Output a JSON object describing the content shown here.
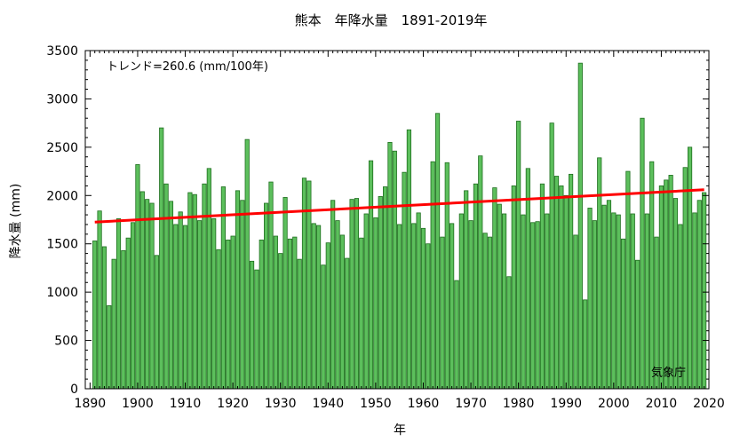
{
  "chart_data": {
    "type": "bar",
    "title": "熊本　年降水量　1891-2019年",
    "xlabel": "年",
    "ylabel": "降水量 (mm)",
    "xlim": [
      1889,
      2020
    ],
    "ylim": [
      0,
      3500
    ],
    "x_ticks": [
      1890,
      1900,
      1910,
      1920,
      1930,
      1940,
      1950,
      1960,
      1970,
      1980,
      1990,
      2000,
      2010,
      2020
    ],
    "y_ticks": [
      0,
      500,
      1000,
      1500,
      2000,
      2500,
      3000,
      3500
    ],
    "grid": false,
    "x": [
      1891,
      1892,
      1893,
      1894,
      1895,
      1896,
      1897,
      1898,
      1899,
      1900,
      1901,
      1902,
      1903,
      1904,
      1905,
      1906,
      1907,
      1908,
      1909,
      1910,
      1911,
      1912,
      1913,
      1914,
      1915,
      1916,
      1917,
      1918,
      1919,
      1920,
      1921,
      1922,
      1923,
      1924,
      1925,
      1926,
      1927,
      1928,
      1929,
      1930,
      1931,
      1932,
      1933,
      1934,
      1935,
      1936,
      1937,
      1938,
      1939,
      1940,
      1941,
      1942,
      1943,
      1944,
      1945,
      1946,
      1947,
      1948,
      1949,
      1950,
      1951,
      1952,
      1953,
      1954,
      1955,
      1956,
      1957,
      1958,
      1959,
      1960,
      1961,
      1962,
      1963,
      1964,
      1965,
      1966,
      1967,
      1968,
      1969,
      1970,
      1971,
      1972,
      1973,
      1974,
      1975,
      1976,
      1977,
      1978,
      1979,
      1980,
      1981,
      1982,
      1983,
      1984,
      1985,
      1986,
      1987,
      1988,
      1989,
      1990,
      1991,
      1992,
      1993,
      1994,
      1995,
      1996,
      1997,
      1998,
      1999,
      2000,
      2001,
      2002,
      2003,
      2004,
      2005,
      2006,
      2007,
      2008,
      2009,
      2010,
      2011,
      2012,
      2013,
      2014,
      2015,
      2016,
      2017,
      2018,
      2019
    ],
    "values": [
      1530,
      1840,
      1470,
      860,
      1340,
      1760,
      1430,
      1560,
      1720,
      2320,
      2040,
      1960,
      1920,
      1380,
      2700,
      2120,
      1940,
      1700,
      1830,
      1690,
      2030,
      2010,
      1740,
      2120,
      2280,
      1760,
      1440,
      2090,
      1540,
      1580,
      2050,
      1950,
      2580,
      1320,
      1230,
      1540,
      1920,
      2140,
      1580,
      1400,
      1980,
      1550,
      1570,
      1340,
      2180,
      2150,
      1710,
      1690,
      1280,
      1510,
      1950,
      1740,
      1590,
      1350,
      1960,
      1970,
      1560,
      1810,
      2360,
      1770,
      1990,
      2090,
      2550,
      2460,
      1700,
      2240,
      2680,
      1710,
      1820,
      1660,
      1500,
      2350,
      2850,
      1570,
      2340,
      1710,
      1120,
      1810,
      2050,
      1740,
      2120,
      2410,
      1610,
      1570,
      2080,
      1910,
      1810,
      1160,
      2100,
      2770,
      1800,
      2280,
      1720,
      1730,
      2120,
      1810,
      2750,
      2200,
      2100,
      2000,
      2220,
      1590,
      3370,
      920,
      1870,
      1740,
      2390,
      1900,
      1950,
      1820,
      1800,
      1550,
      2250,
      1810,
      1330,
      2800,
      1810,
      2350,
      1570,
      2100,
      2160,
      2210,
      1970,
      1700,
      2290,
      2500,
      1820,
      1950,
      2030
    ],
    "trend": {
      "label": "トレンド=260.6 (mm/100年)",
      "start": {
        "x": 1891,
        "y": 1725
      },
      "end": {
        "x": 2019,
        "y": 2060
      },
      "color": "#ff0000"
    },
    "bar_fill": "#5cbf5c",
    "bar_stroke": "#1e6e1e",
    "source": "気象庁"
  }
}
